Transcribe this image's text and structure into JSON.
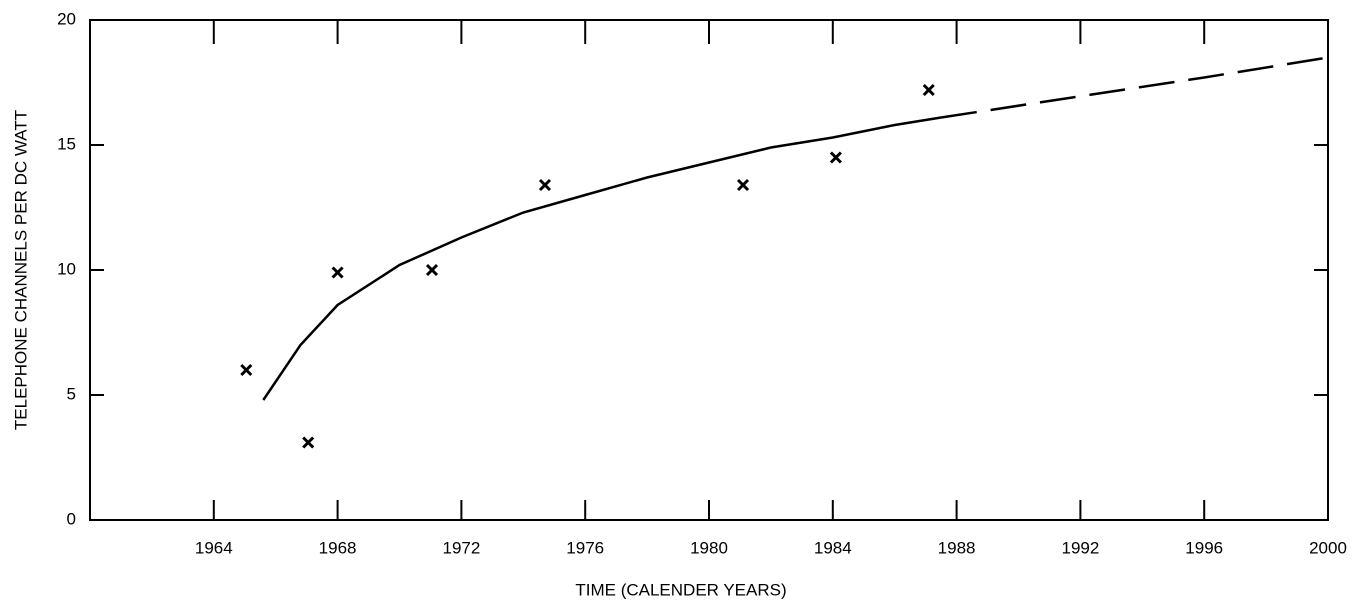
{
  "chart_data": {
    "type": "scatter",
    "ylabel": "TELEPHONE CHANNELS PER DC WATT",
    "xlabel": "TIME (CALENDER YEARS)",
    "xlim": [
      1960,
      2000
    ],
    "xticks": [
      1964,
      1968,
      1972,
      1976,
      1980,
      1984,
      1988,
      1992,
      1996,
      2000
    ],
    "ylim": [
      0,
      20
    ],
    "yticks": [
      0,
      5,
      10,
      15,
      20
    ],
    "color": "#000000",
    "points": {
      "marker": "x",
      "x": [
        1965.05,
        1967.05,
        1968.0,
        1971.05,
        1974.7,
        1981.1,
        1984.1,
        1987.1
      ],
      "values": [
        6,
        3.1,
        9.9,
        10,
        13.4,
        13.4,
        14.5,
        17.2
      ]
    },
    "curves": [
      {
        "style": "solid",
        "x": [
          1965.6,
          1966.8,
          1968,
          1970,
          1972,
          1974,
          1976,
          1978,
          1980,
          1982,
          1984,
          1986,
          1987.5
        ],
        "values": [
          4.8,
          7.0,
          8.6,
          10.2,
          11.3,
          12.3,
          13.0,
          13.7,
          14.3,
          14.9,
          15.3,
          15.8,
          16.1
        ]
      },
      {
        "style": "dashed",
        "x": [
          1987.5,
          1992,
          1996,
          2000
        ],
        "values": [
          16.1,
          16.95,
          17.7,
          18.5
        ]
      }
    ]
  }
}
